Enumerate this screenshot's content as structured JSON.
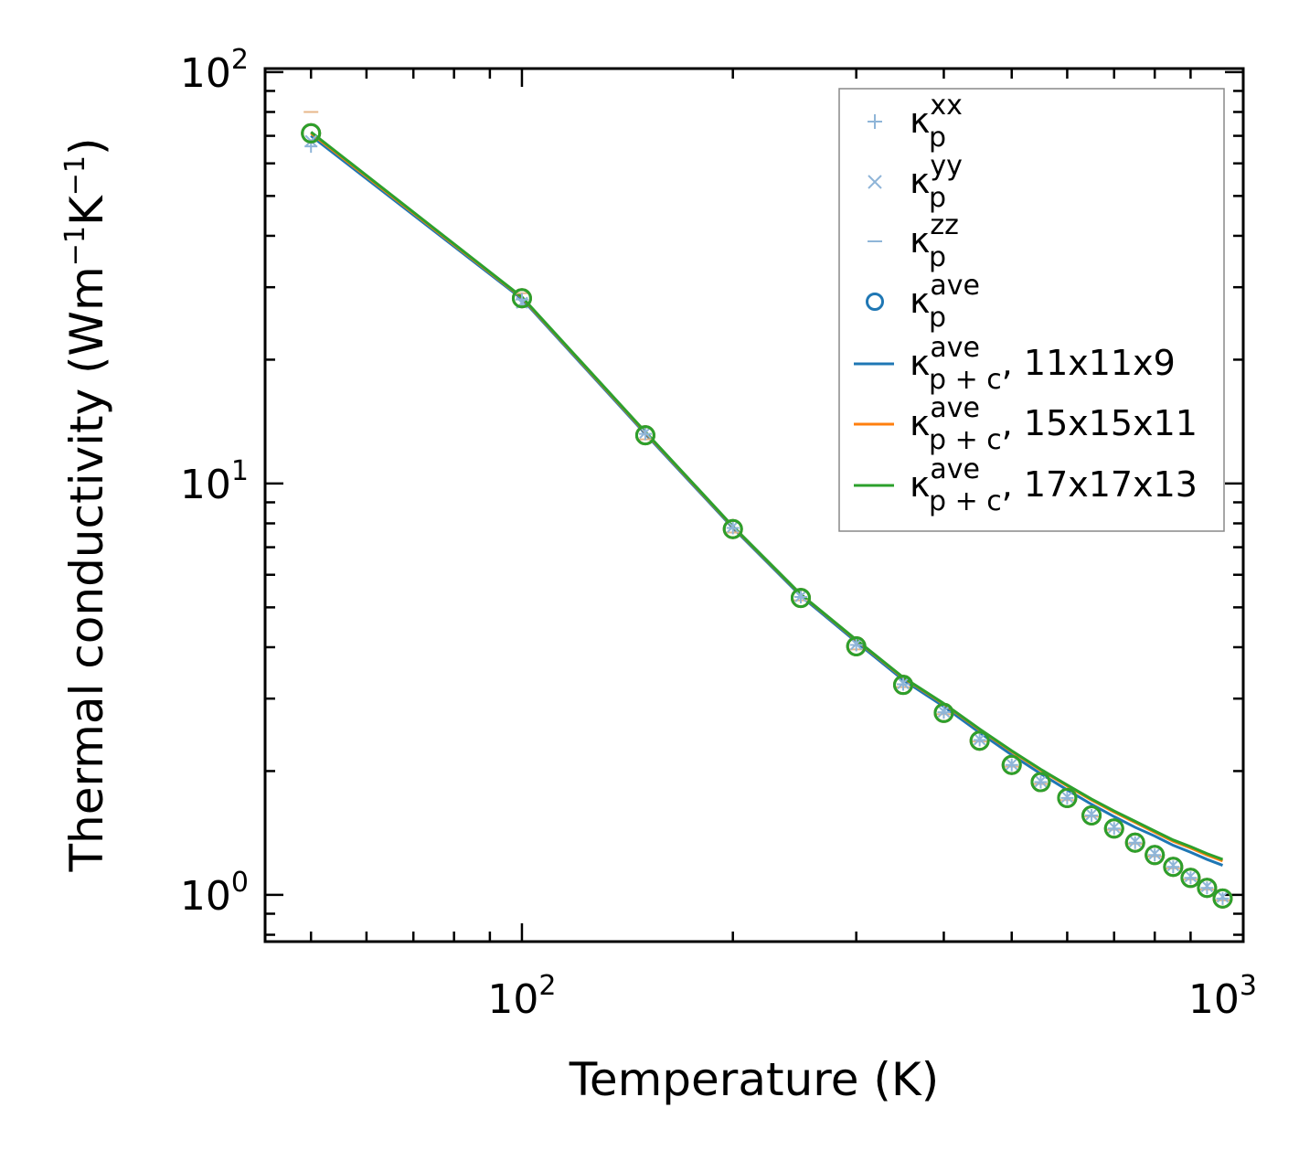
{
  "chart_data": {
    "type": "line",
    "xscale": "log",
    "yscale": "log",
    "xlabel": "Temperature (K)",
    "ylabel": "Thermal conductivity (Wm",
    "ylabel_unit_exp": "−1",
    "ylabel_k": "K",
    "ylabel_close": ")",
    "xlim": [
      43,
      1070
    ],
    "ylim": [
      0.77,
      102
    ],
    "x_ticks": [
      {
        "value": 100,
        "base": "10",
        "exp": "2"
      },
      {
        "value": 1000,
        "base": "10",
        "exp": "3"
      }
    ],
    "y_ticks": [
      {
        "value": 1,
        "base": "10",
        "exp": "0"
      },
      {
        "value": 10,
        "base": "10",
        "exp": "1"
      },
      {
        "value": 100,
        "base": "10",
        "exp": "2"
      }
    ],
    "temperatures": [
      50,
      100,
      150,
      200,
      250,
      300,
      350,
      400,
      450,
      500,
      550,
      600,
      650,
      700,
      750,
      800,
      850,
      900,
      950,
      1000
    ],
    "kappa_p_xx": [
      66.0,
      28.0,
      13.2,
      7.8,
      5.3,
      4.05,
      3.25,
      2.78,
      2.38,
      2.07,
      1.88,
      1.72,
      1.56,
      1.45,
      1.34,
      1.25,
      1.17,
      1.1,
      1.04,
      0.98
    ],
    "kappa_p_yy": [
      68.0,
      27.5,
      13.3,
      7.85,
      5.32,
      4.07,
      3.27,
      2.79,
      2.39,
      2.08,
      1.89,
      1.73,
      1.57,
      1.46,
      1.35,
      1.26,
      1.18,
      1.11,
      1.05,
      0.99
    ],
    "kappa_p_zz": [
      80.0,
      29.0,
      12.8,
      7.6,
      5.2,
      3.95,
      3.2,
      2.75,
      2.36,
      2.05,
      1.86,
      1.7,
      1.55,
      1.44,
      1.33,
      1.24,
      1.16,
      1.09,
      1.03,
      0.97
    ],
    "kappa_p_ave": [
      71.0,
      28.2,
      13.1,
      7.75,
      5.27,
      4.02,
      3.24,
      2.77,
      2.37,
      2.07,
      1.88,
      1.72,
      1.56,
      1.45,
      1.34,
      1.25,
      1.17,
      1.1,
      1.04,
      0.98
    ],
    "series": [
      {
        "name": "κp+c ave, 11x11x9",
        "color": "#1f77b4",
        "values": [
          70.0,
          28.1,
          13.2,
          7.8,
          5.33,
          4.12,
          3.33,
          2.87,
          2.48,
          2.19,
          1.97,
          1.8,
          1.66,
          1.55,
          1.46,
          1.39,
          1.32,
          1.27,
          1.22,
          1.18
        ]
      },
      {
        "name": "κp+c ave, 15x15x11",
        "color": "#ff7f0e",
        "values": [
          71.0,
          28.3,
          13.3,
          7.85,
          5.37,
          4.16,
          3.37,
          2.91,
          2.52,
          2.23,
          2.01,
          1.84,
          1.7,
          1.59,
          1.5,
          1.42,
          1.35,
          1.3,
          1.25,
          1.21
        ]
      },
      {
        "name": "κp+c ave, 17x17x13",
        "color": "#2ca02c",
        "values": [
          71.5,
          28.4,
          13.35,
          7.87,
          5.38,
          4.17,
          3.38,
          2.92,
          2.53,
          2.24,
          2.02,
          1.85,
          1.71,
          1.6,
          1.51,
          1.43,
          1.36,
          1.31,
          1.26,
          1.22
        ]
      }
    ],
    "legend": {
      "placement": "top-right",
      "entries": [
        {
          "symbol": "κ",
          "sub": "p",
          "sup": "xx",
          "suffix": "",
          "marker": "plus",
          "color": "#8fb5d8"
        },
        {
          "symbol": "κ",
          "sub": "p",
          "sup": "yy",
          "suffix": "",
          "marker": "cross",
          "color": "#8fb5d8"
        },
        {
          "symbol": "κ",
          "sub": "p",
          "sup": "zz",
          "suffix": "",
          "marker": "hline",
          "color": "#8fb5d8"
        },
        {
          "symbol": "κ",
          "sub": "p",
          "sup": "ave",
          "suffix": "",
          "marker": "circle",
          "color": "#1f77b4"
        },
        {
          "symbol": "κ",
          "sub": "p + c",
          "sup": "ave",
          "suffix": ", 11x11x9",
          "marker": "line",
          "color": "#1f77b4"
        },
        {
          "symbol": "κ",
          "sub": "p + c",
          "sup": "ave",
          "suffix": ", 15x15x11",
          "marker": "line",
          "color": "#ff7f0e"
        },
        {
          "symbol": "κ",
          "sub": "p + c",
          "sup": "ave",
          "suffix": ", 17x17x13",
          "marker": "line",
          "color": "#2ca02c"
        }
      ]
    },
    "colors": {
      "light_marker": "#8fb5d8",
      "circle_blue": "#1f77b4",
      "circle_orange": "#ff7f0e",
      "circle_green": "#2ca02c"
    }
  }
}
